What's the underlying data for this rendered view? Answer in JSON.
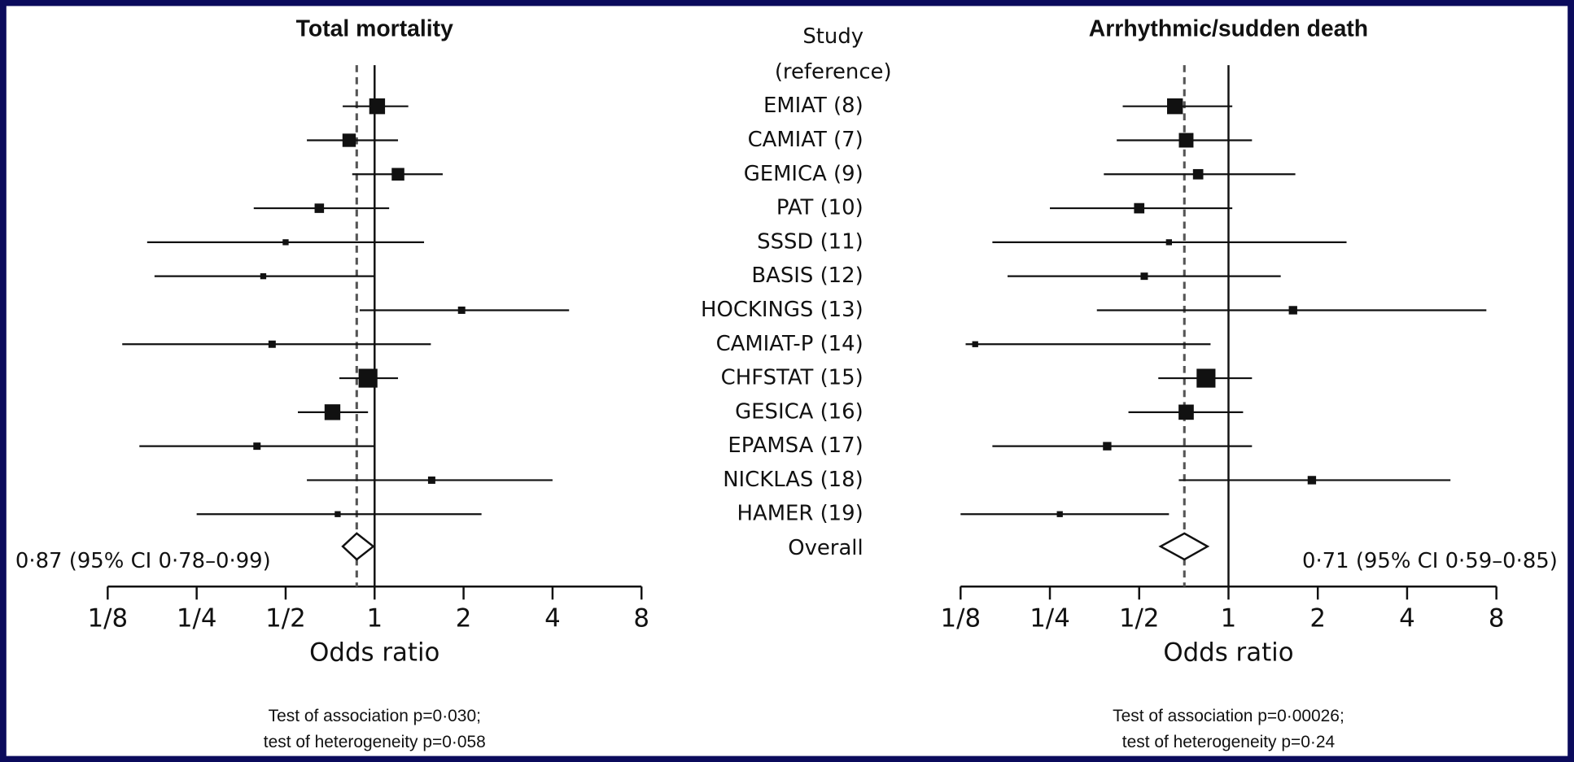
{
  "study_column": {
    "header": [
      "Study",
      "(reference)"
    ],
    "labels": [
      "EMIAT (8)",
      "CAMIAT (7)",
      "GEMICA (9)",
      "PAT (10)",
      "SSSD (11)",
      "BASIS (12)",
      "HOCKINGS (13)",
      "CAMIAT-P (14)",
      "CHFSTAT (15)",
      "GESICA (16)",
      "EPAMSA (17)",
      "NICKLAS (18)",
      "HAMER (19)",
      "Overall"
    ]
  },
  "chart_data": [
    {
      "type": "forest",
      "title": "Total mortality",
      "xlabel": "Odds ratio",
      "log_scale": true,
      "xlim": [
        0.125,
        8
      ],
      "xticks": [
        {
          "value": 0.125,
          "label": "1/8"
        },
        {
          "value": 0.25,
          "label": "1/4"
        },
        {
          "value": 0.5,
          "label": "1/2"
        },
        1,
        2,
        4,
        8
      ],
      "reference_line": 1,
      "color": "#111111",
      "values": [
        1.02,
        0.82,
        1.2,
        0.65,
        0.5,
        0.42,
        1.97,
        0.45,
        0.95,
        0.72,
        0.4,
        1.56,
        0.75
      ],
      "lower": [
        0.78,
        0.59,
        0.84,
        0.39,
        0.17,
        0.18,
        0.89,
        0.14,
        0.76,
        0.55,
        0.16,
        0.59,
        0.25
      ],
      "upper": [
        1.3,
        1.2,
        1.7,
        1.12,
        1.47,
        1.0,
        4.55,
        1.55,
        1.2,
        0.95,
        1.0,
        4.0,
        2.3
      ],
      "weights": [
        14,
        10,
        9,
        5,
        2,
        2,
        3,
        3,
        20,
        14,
        3,
        3,
        2
      ],
      "overall": {
        "value": 0.87,
        "lower": 0.78,
        "upper": 0.99,
        "label": "0·87 (95% CI 0·78–0·99)"
      },
      "notes": [
        "Test of association p=0·030;",
        "test of heterogeneity p=0·058"
      ]
    },
    {
      "type": "forest",
      "title": "Arrhythmic/sudden death",
      "xlabel": "Odds ratio",
      "log_scale": true,
      "xlim": [
        0.125,
        8
      ],
      "xticks": [
        {
          "value": 0.125,
          "label": "1/8"
        },
        {
          "value": 0.25,
          "label": "1/4"
        },
        {
          "value": 0.5,
          "label": "1/2"
        },
        1,
        2,
        4,
        8
      ],
      "reference_line": 1,
      "color": "#111111",
      "values": [
        0.66,
        0.72,
        0.79,
        0.5,
        0.63,
        0.52,
        1.65,
        0.14,
        0.84,
        0.72,
        0.39,
        1.91,
        0.27
      ],
      "lower": [
        0.44,
        0.42,
        0.38,
        0.25,
        0.16,
        0.18,
        0.36,
        0.13,
        0.58,
        0.46,
        0.16,
        0.68,
        0.125
      ],
      "upper": [
        1.03,
        1.2,
        1.68,
        1.03,
        2.5,
        1.5,
        7.4,
        0.87,
        1.2,
        1.12,
        1.2,
        5.6,
        0.63
      ],
      "weights": [
        14,
        12,
        6,
        6,
        2,
        3,
        4,
        2,
        20,
        13,
        4,
        4,
        2
      ],
      "overall": {
        "value": 0.71,
        "lower": 0.59,
        "upper": 0.85,
        "label": "0·71 (95% CI 0·59–0·85)"
      },
      "notes": [
        "Test of association p=0·00026;",
        "test of heterogeneity p=0·24"
      ]
    }
  ]
}
